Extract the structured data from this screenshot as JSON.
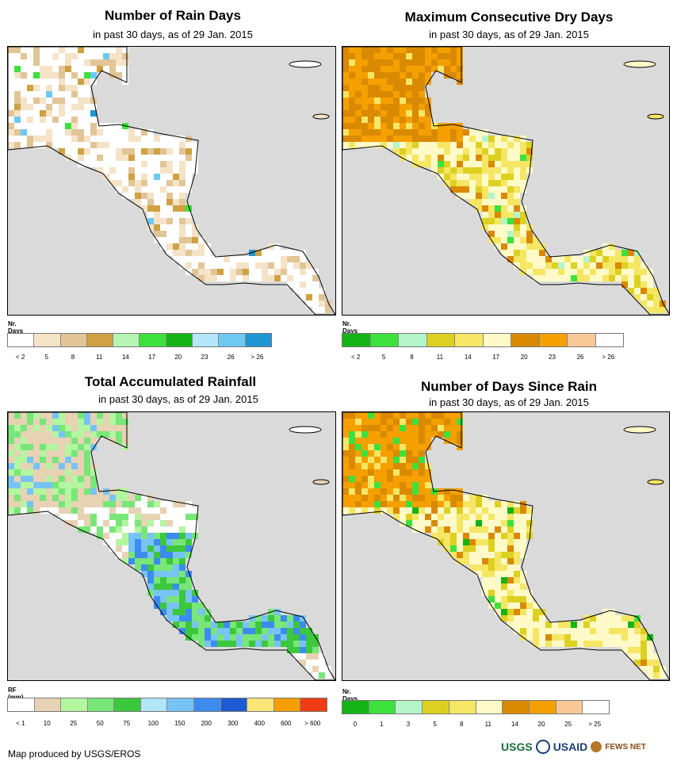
{
  "panels": [
    {
      "title": "Number of Rain Days",
      "subtitle": "in past 30 days, as of 29 Jan. 2015",
      "legend_title": "Nr. Days",
      "legend_colors": [
        "#ffffff",
        "#f5e3c8",
        "#e2c596",
        "#cfa142",
        "#b4f5b4",
        "#3ce13c",
        "#14b414",
        "#b4e6fa",
        "#6ec8f0",
        "#1e96d2"
      ],
      "legend_labels": [
        "< 2",
        "5",
        "8",
        "11",
        "14",
        "17",
        "20",
        "23",
        "26",
        "> 26"
      ],
      "map_palette": [
        "#ffffff",
        "#f5e3c8",
        "#e2c596",
        "#cfa142",
        "#3ce13c",
        "#6ec8f0",
        "#1e96d2"
      ]
    },
    {
      "title": "Maximum Consecutive Dry Days",
      "subtitle": "in past 30 days, as of 29 Jan. 2015",
      "legend_title": "Nr. Days",
      "legend_colors": [
        "#14b414",
        "#3ce13c",
        "#b4f5c8",
        "#ddd020",
        "#f5e664",
        "#fffac8",
        "#d98a00",
        "#f5a000",
        "#fac896",
        "#ffffff"
      ],
      "legend_labels": [
        "< 2",
        "5",
        "8",
        "11",
        "14",
        "17",
        "20",
        "23",
        "26",
        "> 26"
      ],
      "map_palette": [
        "#fffac8",
        "#f5e664",
        "#ddd020",
        "#d98a00",
        "#f5a000",
        "#b4f5c8",
        "#3ce13c"
      ]
    },
    {
      "title": "Total Accumulated Rainfall",
      "subtitle": "in past 30 days, as of 29 Jan. 2015",
      "legend_title": "RF (mm)",
      "legend_colors": [
        "#ffffff",
        "#e8d2b4",
        "#b4f5a0",
        "#78e678",
        "#3cc83c",
        "#b4e6fa",
        "#78c3f5",
        "#3c8cf0",
        "#1e5ad2",
        "#fae678",
        "#f5a000",
        "#f03c14"
      ],
      "legend_labels": [
        "< 1",
        "10",
        "25",
        "50",
        "75",
        "100",
        "150",
        "200",
        "300",
        "400",
        "600",
        "> 600"
      ],
      "map_palette": [
        "#ffffff",
        "#e8d2b4",
        "#b4f5a0",
        "#78e678",
        "#3cc83c",
        "#78c3f5",
        "#3c8cf0"
      ]
    },
    {
      "title": "Number of Days Since Rain",
      "subtitle": "in past 30 days, as of 29 Jan. 2015",
      "legend_title": "Nr. Days",
      "legend_colors": [
        "#14b414",
        "#3ce13c",
        "#b4f5c8",
        "#ddd020",
        "#f5e664",
        "#fffac8",
        "#d98a00",
        "#f5a000",
        "#fac896",
        "#ffffff"
      ],
      "legend_labels": [
        "0",
        "1",
        "3",
        "5",
        "8",
        "11",
        "14",
        "20",
        "25",
        "> 25"
      ],
      "map_palette": [
        "#fffac8",
        "#f5e664",
        "#ddd020",
        "#f5a000",
        "#d98a00",
        "#3ce13c",
        "#14b414"
      ]
    }
  ],
  "footer": "Map produced by USGS/EROS",
  "logos": [
    "USGS",
    "USAID",
    "FEWS NET"
  ],
  "colors": {
    "ocean": "#dadada",
    "land_outline": "#000000"
  }
}
